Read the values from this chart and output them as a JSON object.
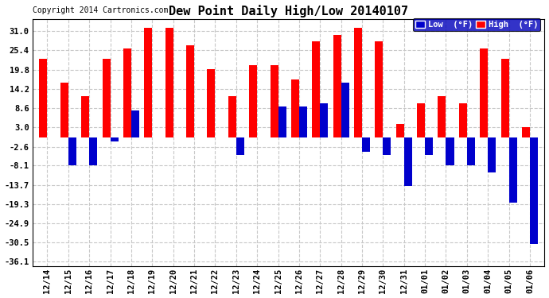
{
  "title": "Dew Point Daily High/Low 20140107",
  "copyright": "Copyright 2014 Cartronics.com",
  "dates": [
    "12/14",
    "12/15",
    "12/16",
    "12/17",
    "12/18",
    "12/19",
    "12/20",
    "12/21",
    "12/22",
    "12/23",
    "12/24",
    "12/25",
    "12/26",
    "12/27",
    "12/28",
    "12/29",
    "12/30",
    "12/31",
    "01/01",
    "01/02",
    "01/03",
    "01/04",
    "01/05",
    "01/06"
  ],
  "high": [
    23,
    16,
    12,
    23,
    26,
    32,
    32,
    27,
    20,
    12,
    21,
    21,
    17,
    28,
    30,
    32,
    28,
    4,
    10,
    12,
    10,
    26,
    23,
    3
  ],
  "low": [
    0,
    -8,
    -8,
    -1,
    8,
    0,
    0,
    0,
    0,
    -5,
    0,
    9,
    9,
    10,
    16,
    -4,
    -5,
    -14,
    -5,
    -8,
    -8,
    -10,
    -19,
    -31
  ],
  "high_color": "#ff0000",
  "low_color": "#0000cc",
  "bg_color": "#ffffff",
  "grid_color": "#c8c8c8",
  "yticks": [
    31.0,
    25.4,
    19.8,
    14.2,
    8.6,
    3.0,
    -2.6,
    -8.1,
    -13.7,
    -19.3,
    -24.9,
    -30.5,
    -36.1
  ],
  "ylim": [
    -37.5,
    34.5
  ],
  "bar_width": 0.38,
  "figsize": [
    6.9,
    3.75
  ],
  "dpi": 100
}
